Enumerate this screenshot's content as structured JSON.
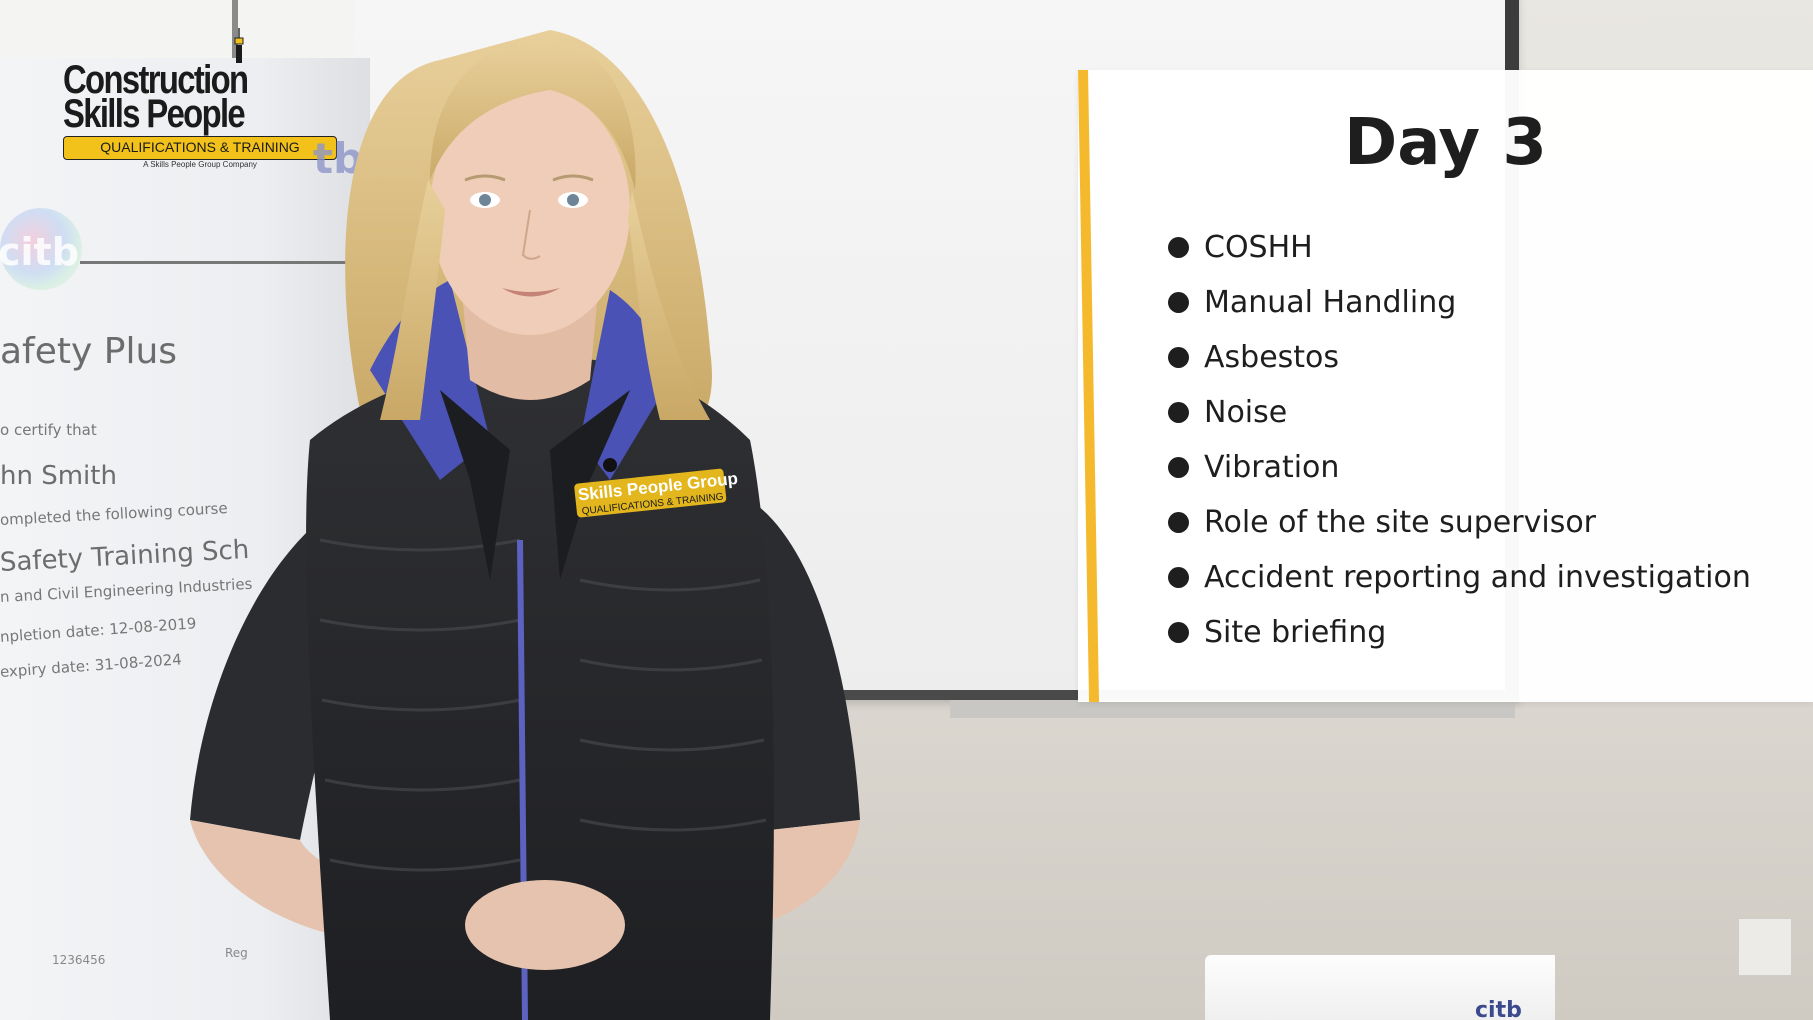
{
  "logo": {
    "line1": "Construction",
    "line2": "Skills People",
    "band": "QUALIFICATIONS & TRAINING",
    "sub": "A Skills People Group Company",
    "citb_partial": "tb"
  },
  "certificate": {
    "badge": "citb",
    "title": "afety Plus",
    "line1": "o certify that",
    "name": "hn Smith",
    "line2": "ompleted the following course",
    "course": "Safety Training Sch",
    "line3": "n and Civil Engineering Industries",
    "line4": "npletion date: 12-08-2019",
    "line5": "expiry date: 31-08-2024",
    "serial": "1236456",
    "reg": "Reg"
  },
  "vest_logo": {
    "line1": "Skills People Group",
    "line2": "QUALIFICATIONS & TRAINING"
  },
  "panel": {
    "title": "Day 3",
    "items": [
      "COSHH",
      "Manual Handling",
      "Asbestos",
      "Noise",
      "Vibration",
      "Role of the site supervisor",
      "Accident reporting and investigation",
      "Site briefing"
    ],
    "accent_color": "#f5b92e"
  },
  "box_label": "citb"
}
